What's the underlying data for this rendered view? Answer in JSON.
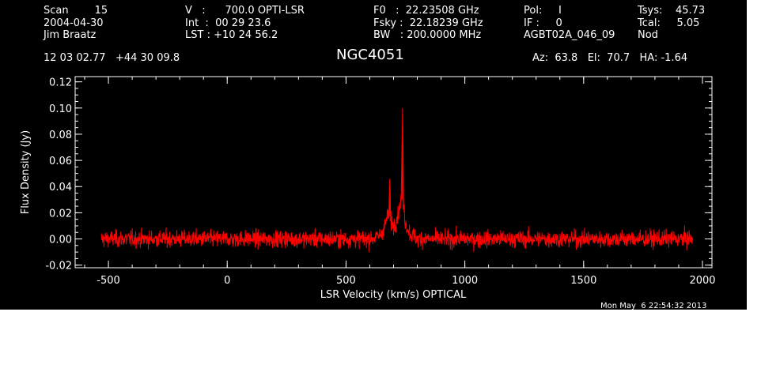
{
  "header": {
    "col1": [
      "Scan        15",
      "2004-04-30",
      "Jim Braatz"
    ],
    "col2": [
      "V   :      700.0 OPTI-LSR",
      "Int  :  00 29 23.6",
      "LST : +10 24 56.2"
    ],
    "col3": [
      "F0   :  22.23508 GHz",
      "Fsky :  22.18239 GHz",
      "BW   : 200.0000 MHz"
    ],
    "col4": [
      "Pol:     I",
      "IF :     0",
      "AGBT02A_046_09"
    ],
    "col5": [
      "Tsys:    45.73",
      "Tcal:     5.05",
      "Nod"
    ],
    "coords": "12 03 02.77   +44 30 09.8",
    "source": "NGC4051",
    "azel": "Az:  63.8   El:  70.7   HA: -1.64"
  },
  "footer": {
    "timestamp": "Mon May  6 22:54:32 2013"
  },
  "colors": {
    "background": "#000000",
    "axes": "#ffffff",
    "series": "#ff0000"
  },
  "chart_data": {
    "type": "line",
    "title": "NGC4051",
    "xlabel": "LSR Velocity (km/s) OPTICAL",
    "ylabel": "Flux Density (Jy)",
    "xlim": [
      -640,
      2040
    ],
    "ylim": [
      -0.022,
      0.124
    ],
    "xticks": [
      -500,
      0,
      500,
      1000,
      1500,
      2000
    ],
    "xtick_labels": [
      "-500",
      "0",
      "500",
      "1000",
      "1500",
      "2000"
    ],
    "yticks": [
      -0.02,
      0.0,
      0.02,
      0.04,
      0.06,
      0.08,
      0.1,
      0.12
    ],
    "ytick_labels": [
      "-0.02",
      "0.00",
      "0.02",
      "0.04",
      "0.06",
      "0.08",
      "0.10",
      "0.12"
    ],
    "grid": false,
    "legend": "none",
    "series": [
      {
        "color": "#ff0000",
        "x_range": [
          -530,
          1960
        ],
        "noise_rms": 0.0032,
        "baseline": 0.0,
        "features": [
          {
            "x": 600,
            "y": 0.0
          },
          {
            "x": 640,
            "y": 0.002
          },
          {
            "x": 660,
            "y": 0.008
          },
          {
            "x": 672,
            "y": 0.016
          },
          {
            "x": 680,
            "y": 0.018
          },
          {
            "x": 684,
            "y": 0.046
          },
          {
            "x": 688,
            "y": 0.014
          },
          {
            "x": 700,
            "y": 0.01
          },
          {
            "x": 712,
            "y": 0.014
          },
          {
            "x": 722,
            "y": 0.022
          },
          {
            "x": 732,
            "y": 0.03
          },
          {
            "x": 738,
            "y": 0.1
          },
          {
            "x": 742,
            "y": 0.026
          },
          {
            "x": 750,
            "y": 0.012
          },
          {
            "x": 770,
            "y": 0.004
          },
          {
            "x": 800,
            "y": 0.0
          }
        ]
      }
    ]
  }
}
